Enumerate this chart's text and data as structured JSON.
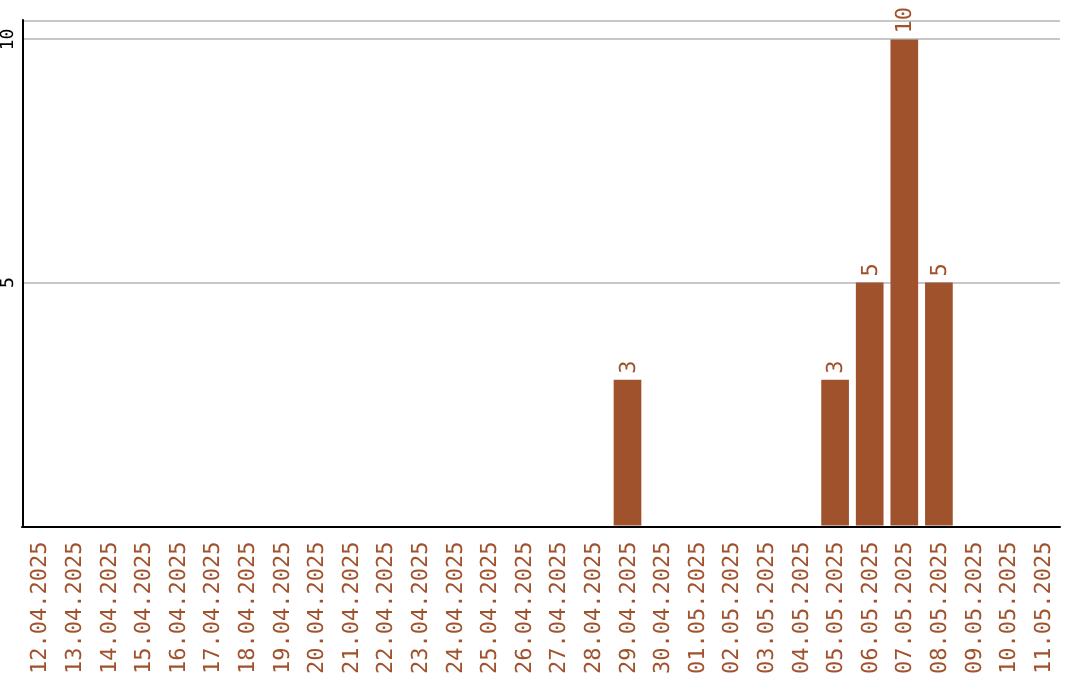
{
  "chart_data": {
    "type": "bar",
    "categories": [
      "12.04.2025",
      "13.04.2025",
      "14.04.2025",
      "15.04.2025",
      "16.04.2025",
      "17.04.2025",
      "18.04.2025",
      "19.04.2025",
      "20.04.2025",
      "21.04.2025",
      "22.04.2025",
      "23.04.2025",
      "24.04.2025",
      "25.04.2025",
      "26.04.2025",
      "27.04.2025",
      "28.04.2025",
      "29.04.2025",
      "30.04.2025",
      "01.05.2025",
      "02.05.2025",
      "03.05.2025",
      "04.05.2025",
      "05.05.2025",
      "06.05.2025",
      "07.05.2025",
      "08.05.2025",
      "09.05.2025",
      "10.05.2025",
      "11.05.2025"
    ],
    "values": [
      0,
      0,
      0,
      0,
      0,
      0,
      0,
      0,
      0,
      0,
      0,
      0,
      0,
      0,
      0,
      0,
      0,
      3,
      0,
      0,
      0,
      0,
      0,
      3,
      5,
      10,
      5,
      0,
      0,
      0
    ],
    "value_labels": [
      null,
      null,
      null,
      null,
      null,
      null,
      null,
      null,
      null,
      null,
      null,
      null,
      null,
      null,
      null,
      null,
      null,
      "3",
      null,
      null,
      null,
      null,
      null,
      "3",
      "5",
      "10",
      "5",
      null,
      null,
      null
    ],
    "color": "#a0522d",
    "ylim": [
      0,
      10.4
    ],
    "yticks": [
      5,
      10
    ],
    "grid": "y"
  }
}
